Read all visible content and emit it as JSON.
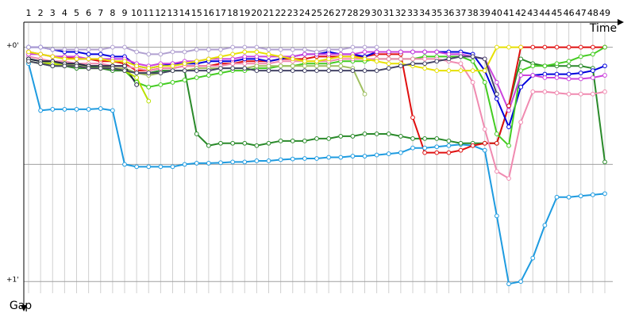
{
  "chart_data": {
    "type": "line",
    "x_label": "Time",
    "y_label": "Gap",
    "categories": [
      1,
      2,
      3,
      4,
      5,
      6,
      7,
      8,
      9,
      10,
      11,
      12,
      13,
      14,
      15,
      16,
      17,
      18,
      19,
      20,
      21,
      22,
      23,
      24,
      25,
      26,
      27,
      28,
      29,
      30,
      31,
      32,
      33,
      34,
      35,
      36,
      37,
      38,
      39,
      40,
      41,
      42,
      43,
      44,
      45,
      46,
      47,
      48,
      49
    ],
    "ylim": [
      -0.1,
      1.05
    ],
    "yticks": [
      {
        "value": 0,
        "label": "+0'"
      },
      {
        "value": 0.5,
        "label": null
      },
      {
        "value": 1,
        "label": "+1'"
      }
    ],
    "grid": true,
    "series": [
      {
        "color": "#1e9be0",
        "values": [
          0.07,
          0.27,
          0.265,
          0.265,
          0.265,
          0.265,
          0.262,
          0.27,
          0.5,
          0.51,
          0.51,
          0.51,
          0.51,
          0.5,
          0.495,
          0.495,
          0.493,
          0.49,
          0.49,
          0.485,
          0.485,
          0.48,
          0.477,
          0.475,
          0.475,
          0.47,
          0.47,
          0.465,
          0.465,
          0.46,
          0.455,
          0.45,
          0.43,
          0.43,
          0.425,
          0.42,
          0.415,
          0.42,
          0.44,
          0.72,
          1.01,
          1.0,
          0.9,
          0.76,
          0.64,
          0.64,
          0.635,
          0.63,
          0.625
        ]
      },
      {
        "color": "#2a8a2a",
        "values": [
          0.06,
          0.07,
          0.08,
          0.08,
          0.09,
          0.09,
          0.09,
          0.1,
          0.1,
          0.11,
          0.11,
          0.1,
          0.1,
          0.1,
          0.37,
          0.42,
          0.41,
          0.41,
          0.41,
          0.42,
          0.41,
          0.4,
          0.4,
          0.4,
          0.39,
          0.39,
          0.38,
          0.38,
          0.37,
          0.37,
          0.37,
          0.38,
          0.39,
          0.39,
          0.39,
          0.4,
          0.41,
          0.41,
          0.41,
          0.41,
          0.25,
          0.05,
          0.07,
          0.08,
          0.08,
          0.08,
          0.08,
          0.09,
          0.49
        ]
      },
      {
        "color": "#e01010",
        "values": [
          0.02,
          0.03,
          0.04,
          0.04,
          0.05,
          0.05,
          0.06,
          0.06,
          0.07,
          0.1,
          0.1,
          0.09,
          0.09,
          0.08,
          0.08,
          0.08,
          0.07,
          0.07,
          0.06,
          0.06,
          0.06,
          0.05,
          0.05,
          0.05,
          0.04,
          0.04,
          0.04,
          0.04,
          0.04,
          0.03,
          0.03,
          0.03,
          0.3,
          0.45,
          0.45,
          0.45,
          0.44,
          0.42,
          0.41,
          0.41,
          0.25,
          0.0,
          0.0,
          0.0,
          0.0,
          0.0,
          0.0,
          0.0,
          0.0
        ]
      },
      {
        "color": "#0000dd",
        "values": [
          0.0,
          0.0,
          0.01,
          0.02,
          0.02,
          0.03,
          0.03,
          0.04,
          0.04,
          0.08,
          0.09,
          0.08,
          0.07,
          0.07,
          0.07,
          0.06,
          0.06,
          0.06,
          0.05,
          0.05,
          0.06,
          0.05,
          0.04,
          0.03,
          0.03,
          0.02,
          0.03,
          0.03,
          0.04,
          0.02,
          0.02,
          0.02,
          0.02,
          0.02,
          0.02,
          0.02,
          0.02,
          0.03,
          0.1,
          0.22,
          0.34,
          0.17,
          0.12,
          0.115,
          0.115,
          0.115,
          0.11,
          0.1,
          0.08
        ]
      },
      {
        "color": "#44cc22",
        "values": [
          0.05,
          0.06,
          0.07,
          0.07,
          0.08,
          0.08,
          0.09,
          0.09,
          0.1,
          0.15,
          0.17,
          0.16,
          0.15,
          0.14,
          0.13,
          0.12,
          0.11,
          0.1,
          0.1,
          0.09,
          0.09,
          0.08,
          0.08,
          0.07,
          0.07,
          0.07,
          0.06,
          0.06,
          0.06,
          0.05,
          0.05,
          0.05,
          0.05,
          0.04,
          0.04,
          0.04,
          0.04,
          0.06,
          0.15,
          0.37,
          0.42,
          0.1,
          0.08,
          0.08,
          0.07,
          0.06,
          0.04,
          0.03,
          0.0
        ]
      },
      {
        "color": "#f08ab0",
        "values": [
          0.04,
          0.05,
          0.06,
          0.06,
          0.07,
          0.07,
          0.07,
          0.08,
          0.08,
          0.09,
          0.1,
          0.09,
          0.09,
          0.08,
          0.08,
          0.08,
          0.08,
          0.07,
          0.07,
          0.07,
          0.07,
          0.06,
          0.06,
          0.06,
          0.06,
          0.06,
          0.05,
          0.05,
          0.05,
          0.05,
          0.05,
          0.05,
          0.05,
          0.05,
          0.05,
          0.06,
          0.07,
          0.15,
          0.35,
          0.53,
          0.56,
          0.32,
          0.19,
          0.19,
          0.195,
          0.2,
          0.2,
          0.2,
          0.19
        ]
      },
      {
        "color": "#cc44dd",
        "values": [
          0.03,
          0.03,
          0.04,
          0.04,
          0.04,
          0.05,
          0.05,
          0.05,
          0.05,
          0.07,
          0.08,
          0.07,
          0.07,
          0.06,
          0.06,
          0.05,
          0.05,
          0.05,
          0.04,
          0.04,
          0.04,
          0.04,
          0.04,
          0.03,
          0.03,
          0.03,
          0.03,
          0.03,
          0.02,
          0.02,
          0.02,
          0.02,
          0.02,
          0.02,
          0.02,
          0.03,
          0.03,
          0.04,
          0.05,
          0.15,
          0.27,
          0.12,
          0.12,
          0.13,
          0.13,
          0.135,
          0.135,
          0.13,
          0.12
        ]
      },
      {
        "color": "#e6e000",
        "values": [
          0.02,
          0.03,
          0.04,
          0.05,
          0.05,
          0.05,
          0.05,
          0.06,
          0.06,
          0.08,
          0.09,
          0.08,
          0.08,
          0.07,
          0.06,
          0.05,
          0.04,
          0.03,
          0.02,
          0.02,
          0.03,
          0.04,
          0.05,
          0.06,
          0.06,
          0.05,
          0.04,
          0.04,
          0.05,
          0.06,
          0.07,
          0.07,
          0.08,
          0.09,
          0.1,
          0.1,
          0.1,
          0.1,
          0.1,
          0.0,
          0.0,
          0.0,
          null,
          null,
          null,
          null,
          null,
          null,
          null
        ]
      },
      {
        "color": "#a0c060",
        "values": [
          0.05,
          0.06,
          0.07,
          0.07,
          0.08,
          0.08,
          0.08,
          0.09,
          0.09,
          0.11,
          0.12,
          0.11,
          0.1,
          0.1,
          0.09,
          0.09,
          0.09,
          0.09,
          0.09,
          0.08,
          0.08,
          0.08,
          0.08,
          0.08,
          0.08,
          0.08,
          0.08,
          0.09,
          0.2,
          null,
          null,
          null,
          null,
          null,
          null,
          null,
          null,
          null,
          null,
          null,
          null,
          null,
          null,
          null,
          null,
          null,
          null,
          null,
          null
        ]
      },
      {
        "color": "#222244",
        "values": [
          0.05,
          0.06,
          0.06,
          0.07,
          0.07,
          0.08,
          0.08,
          0.08,
          0.08,
          0.16,
          null,
          null,
          null,
          null,
          null,
          null,
          null,
          null,
          null,
          null,
          null,
          null,
          null,
          null,
          null,
          null,
          null,
          null,
          null,
          null,
          null,
          null,
          null,
          null,
          null,
          null,
          null,
          null,
          null,
          null,
          null,
          null,
          null,
          null,
          null,
          null,
          null,
          null,
          null
        ]
      },
      {
        "color": "#b8e000",
        "values": [
          0.06,
          0.07,
          0.07,
          0.08,
          0.08,
          0.09,
          0.09,
          0.09,
          0.1,
          0.13,
          0.23,
          null,
          null,
          null,
          null,
          null,
          null,
          null,
          null,
          null,
          null,
          null,
          null,
          null,
          null,
          null,
          null,
          null,
          null,
          null,
          null,
          null,
          null,
          null,
          null,
          null,
          null,
          null,
          null,
          null,
          null,
          null,
          null,
          null,
          null,
          null,
          null,
          null,
          null
        ]
      },
      {
        "color": "#b0a0d0",
        "values": [
          0.0,
          0.0,
          0.01,
          0.01,
          0.01,
          0.01,
          0.01,
          0.0,
          0.0,
          0.02,
          0.03,
          0.03,
          0.02,
          0.02,
          0.01,
          0.01,
          0.01,
          0.0,
          0.0,
          0.0,
          0.01,
          0.01,
          0.01,
          0.01,
          0.02,
          0.01,
          0.01,
          0.0,
          0.0,
          0.0,
          null,
          null,
          null,
          null,
          null,
          null,
          null,
          null,
          null,
          null,
          null,
          null,
          null,
          null,
          null,
          null,
          null,
          null,
          null
        ]
      },
      {
        "color": "#444466",
        "values": [
          0.06,
          0.07,
          0.08,
          0.08,
          0.08,
          0.09,
          0.09,
          0.09,
          0.1,
          0.11,
          0.11,
          0.11,
          0.1,
          0.1,
          0.1,
          0.1,
          0.09,
          0.09,
          0.09,
          0.1,
          0.1,
          0.1,
          0.1,
          0.1,
          0.1,
          0.1,
          0.1,
          0.1,
          0.1,
          0.1,
          0.09,
          0.08,
          0.07,
          0.07,
          0.06,
          0.05,
          0.04,
          0.04,
          0.05,
          0.2,
          null,
          null,
          null,
          null,
          null,
          null,
          null,
          null,
          null
        ]
      }
    ]
  }
}
